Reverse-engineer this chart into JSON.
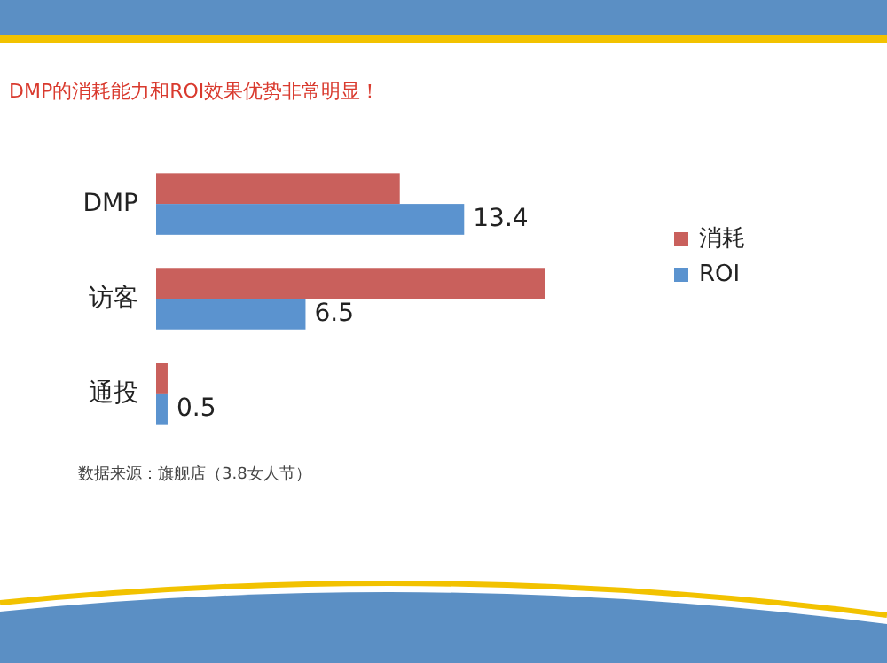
{
  "chart_data": {
    "type": "bar",
    "orientation": "horizontal",
    "subtitle": "DMP的消耗能力和ROI效果优势非常明显！",
    "categories": [
      "DMP",
      "访客",
      "通投"
    ],
    "series": [
      {
        "name": "消耗",
        "color": "#c9605c",
        "values": [
          10.6,
          16.9,
          0.5
        ]
      },
      {
        "name": "ROI",
        "color": "#5b93cf",
        "values": [
          13.4,
          6.5,
          0.5
        ],
        "value_labels": [
          "13.4",
          "6.5",
          "0.5"
        ]
      }
    ],
    "legend": "right",
    "annotations": [
      "数据来源：旗舰店（3.8女人节）"
    ]
  }
}
